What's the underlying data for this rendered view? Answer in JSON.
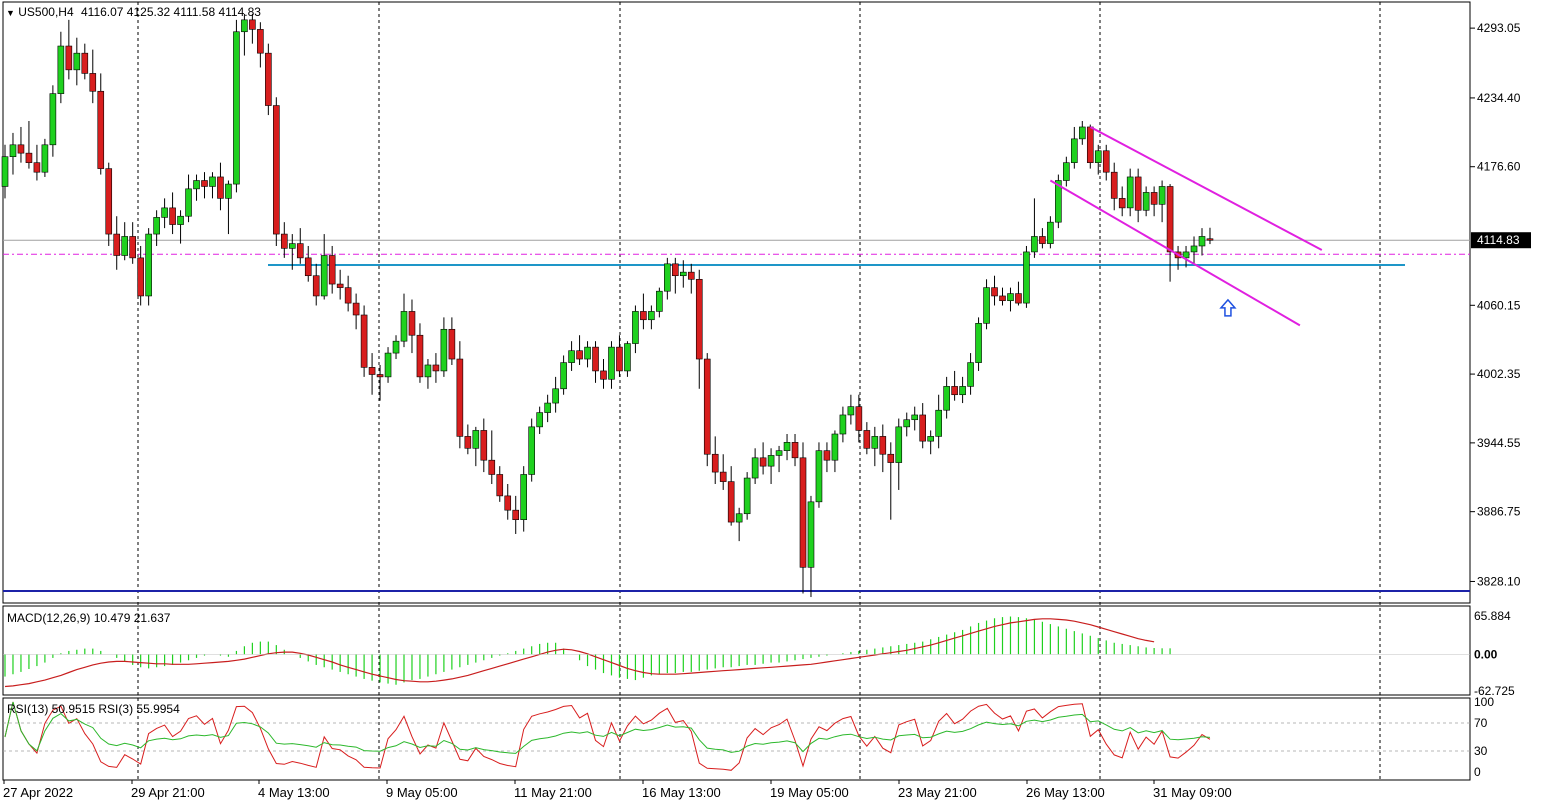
{
  "header": {
    "symbol": "US500,H4",
    "ohlc": "4116.07 4125.32 4111.58 4114.83",
    "arrow": "down-triangle-icon"
  },
  "price_axis": {
    "ticks": [
      "4293.05",
      "4234.40",
      "4176.60",
      "4060.15",
      "4002.35",
      "3944.55",
      "3886.75",
      "3828.10"
    ],
    "current": "4114.83"
  },
  "macd": {
    "label": "MACD(12,26,9) 10.479 21.637",
    "ticks": [
      "65.884",
      "0.00",
      "-62.725"
    ]
  },
  "rsi": {
    "label": "RSI(13) 50.9515  RSI(3) 55.9954",
    "ticks": [
      "100",
      "70",
      "30",
      "0"
    ]
  },
  "time_axis": {
    "labels": [
      "27 Apr 2022",
      "29 Apr 21:00",
      "4 May 13:00",
      "9 May 05:00",
      "11 May 21:00",
      "16 May 13:00",
      "19 May 05:00",
      "23 May 21:00",
      "26 May 13:00",
      "31 May 09:00"
    ]
  },
  "colors": {
    "bull": "#1fd11f",
    "bear": "#d81e1e",
    "channel": "#e020e0",
    "support": "#1e96c8",
    "bottom_line": "#1c22a8",
    "macd_signal": "#c81e1e",
    "rsi13": "#2cb82c",
    "rsi3": "#d81e1e"
  },
  "chart_data": {
    "type": "candlestick",
    "symbol": "US500",
    "timeframe": "H4",
    "last_bar": {
      "open": 4116.07,
      "high": 4125.32,
      "low": 4111.58,
      "close": 4114.83
    },
    "ohlc": [
      [
        4160,
        4195,
        4150,
        4185
      ],
      [
        4185,
        4205,
        4170,
        4195
      ],
      [
        4195,
        4210,
        4180,
        4188
      ],
      [
        4188,
        4215,
        4175,
        4180
      ],
      [
        4180,
        4195,
        4165,
        4172
      ],
      [
        4172,
        4200,
        4168,
        4195
      ],
      [
        4195,
        4245,
        4185,
        4238
      ],
      [
        4238,
        4290,
        4230,
        4278
      ],
      [
        4278,
        4300,
        4250,
        4258
      ],
      [
        4258,
        4285,
        4245,
        4272
      ],
      [
        4272,
        4280,
        4250,
        4255
      ],
      [
        4255,
        4275,
        4230,
        4240
      ],
      [
        4240,
        4255,
        4170,
        4175
      ],
      [
        4175,
        4180,
        4110,
        4120
      ],
      [
        4120,
        4135,
        4090,
        4102
      ],
      [
        4102,
        4130,
        4098,
        4118
      ],
      [
        4118,
        4130,
        4095,
        4100
      ],
      [
        4100,
        4110,
        4060,
        4068
      ],
      [
        4068,
        4125,
        4060,
        4120
      ],
      [
        4120,
        4140,
        4110,
        4134
      ],
      [
        4134,
        4150,
        4125,
        4142
      ],
      [
        4142,
        4155,
        4120,
        4128
      ],
      [
        4128,
        4140,
        4112,
        4135
      ],
      [
        4135,
        4170,
        4130,
        4158
      ],
      [
        4158,
        4170,
        4148,
        4165
      ],
      [
        4165,
        4172,
        4150,
        4160
      ],
      [
        4160,
        4172,
        4150,
        4168
      ],
      [
        4168,
        4180,
        4140,
        4150
      ],
      [
        4150,
        4165,
        4120,
        4162
      ],
      [
        4162,
        4300,
        4155,
        4290
      ],
      [
        4290,
        4305,
        4270,
        4300
      ],
      [
        4300,
        4305,
        4280,
        4292
      ],
      [
        4292,
        4298,
        4260,
        4272
      ],
      [
        4272,
        4280,
        4220,
        4228
      ],
      [
        4228,
        4235,
        4110,
        4120
      ],
      [
        4120,
        4130,
        4100,
        4108
      ],
      [
        4108,
        4120,
        4090,
        4112
      ],
      [
        4112,
        4125,
        4095,
        4100
      ],
      [
        4100,
        4110,
        4080,
        4085
      ],
      [
        4085,
        4095,
        4060,
        4068
      ],
      [
        4068,
        4120,
        4065,
        4102
      ],
      [
        4102,
        4110,
        4070,
        4078
      ],
      [
        4078,
        4090,
        4065,
        4075
      ],
      [
        4075,
        4085,
        4055,
        4062
      ],
      [
        4062,
        4070,
        4040,
        4052
      ],
      [
        4052,
        4060,
        4000,
        4008
      ],
      [
        4008,
        4020,
        3985,
        4002
      ],
      [
        4002,
        4010,
        3980,
        4000
      ],
      [
        4000,
        4025,
        3995,
        4020
      ],
      [
        4020,
        4035,
        4015,
        4030
      ],
      [
        4030,
        4070,
        4025,
        4055
      ],
      [
        4055,
        4065,
        4020,
        4035
      ],
      [
        4035,
        4045,
        3995,
        4000
      ],
      [
        4000,
        4015,
        3990,
        4010
      ],
      [
        4010,
        4020,
        3995,
        4005
      ],
      [
        4005,
        4050,
        4000,
        4040
      ],
      [
        4040,
        4050,
        4010,
        4015
      ],
      [
        4015,
        4030,
        3940,
        3950
      ],
      [
        3950,
        3960,
        3935,
        3940
      ],
      [
        3940,
        3958,
        3925,
        3955
      ],
      [
        3955,
        3965,
        3920,
        3930
      ],
      [
        3930,
        3955,
        3910,
        3918
      ],
      [
        3918,
        3925,
        3895,
        3900
      ],
      [
        3900,
        3910,
        3880,
        3888
      ],
      [
        3888,
        3900,
        3868,
        3880
      ],
      [
        3880,
        3925,
        3870,
        3918
      ],
      [
        3918,
        3965,
        3912,
        3958
      ],
      [
        3958,
        3975,
        3952,
        3970
      ],
      [
        3970,
        3985,
        3962,
        3978
      ],
      [
        3978,
        4000,
        3970,
        3990
      ],
      [
        3990,
        4018,
        3985,
        4012
      ],
      [
        4012,
        4030,
        4005,
        4022
      ],
      [
        4022,
        4035,
        4010,
        4015
      ],
      [
        4015,
        4030,
        4008,
        4025
      ],
      [
        4025,
        4030,
        3995,
        4005
      ],
      [
        4005,
        4015,
        3990,
        3998
      ],
      [
        3998,
        4030,
        3990,
        4025
      ],
      [
        4025,
        4035,
        4000,
        4005
      ],
      [
        4005,
        4030,
        4000,
        4028
      ],
      [
        4028,
        4060,
        4020,
        4055
      ],
      [
        4055,
        4070,
        4040,
        4048
      ],
      [
        4048,
        4060,
        4040,
        4055
      ],
      [
        4055,
        4075,
        4050,
        4072
      ],
      [
        4072,
        4100,
        4065,
        4095
      ],
      [
        4095,
        4100,
        4070,
        4085
      ],
      [
        4085,
        4098,
        4075,
        4088
      ],
      [
        4088,
        4095,
        4070,
        4082
      ],
      [
        4082,
        4090,
        3990,
        4015
      ],
      [
        4015,
        4020,
        3925,
        3935
      ],
      [
        3935,
        3950,
        3910,
        3920
      ],
      [
        3920,
        3935,
        3905,
        3912
      ],
      [
        3912,
        3925,
        3875,
        3878
      ],
      [
        3878,
        3890,
        3862,
        3885
      ],
      [
        3885,
        3920,
        3880,
        3915
      ],
      [
        3915,
        3940,
        3910,
        3932
      ],
      [
        3932,
        3945,
        3918,
        3925
      ],
      [
        3925,
        3940,
        3910,
        3934
      ],
      [
        3934,
        3942,
        3920,
        3938
      ],
      [
        3938,
        3952,
        3930,
        3945
      ],
      [
        3945,
        3952,
        3925,
        3932
      ],
      [
        3932,
        3945,
        3818,
        3840
      ],
      [
        3840,
        3900,
        3815,
        3895
      ],
      [
        3895,
        3945,
        3890,
        3938
      ],
      [
        3938,
        3945,
        3920,
        3930
      ],
      [
        3930,
        3955,
        3920,
        3952
      ],
      [
        3952,
        3975,
        3945,
        3968
      ],
      [
        3968,
        3985,
        3960,
        3975
      ],
      [
        3975,
        3985,
        3945,
        3955
      ],
      [
        3955,
        3962,
        3935,
        3940
      ],
      [
        3940,
        3958,
        3925,
        3950
      ],
      [
        3950,
        3960,
        3920,
        3935
      ],
      [
        3935,
        3945,
        3880,
        3928
      ],
      [
        3928,
        3965,
        3905,
        3958
      ],
      [
        3958,
        3970,
        3950,
        3964
      ],
      [
        3964,
        3975,
        3955,
        3968
      ],
      [
        3968,
        3978,
        3940,
        3946
      ],
      [
        3946,
        3955,
        3935,
        3950
      ],
      [
        3950,
        3985,
        3940,
        3972
      ],
      [
        3972,
        4000,
        3965,
        3992
      ],
      [
        3992,
        4005,
        3980,
        3985
      ],
      [
        3985,
        4000,
        3978,
        3992
      ],
      [
        3992,
        4020,
        3985,
        4012
      ],
      [
        4012,
        4050,
        4005,
        4045
      ],
      [
        4045,
        4082,
        4040,
        4075
      ],
      [
        4075,
        4085,
        4060,
        4068
      ],
      [
        4068,
        4075,
        4060,
        4064
      ],
      [
        4064,
        4075,
        4055,
        4070
      ],
      [
        4070,
        4080,
        4060,
        4062
      ],
      [
        4062,
        4110,
        4058,
        4105
      ],
      [
        4105,
        4150,
        4100,
        4118
      ],
      [
        4118,
        4125,
        4108,
        4112
      ],
      [
        4112,
        4135,
        4108,
        4130
      ],
      [
        4130,
        4170,
        4125,
        4165
      ],
      [
        4165,
        4185,
        4160,
        4180
      ],
      [
        4180,
        4210,
        4175,
        4200
      ],
      [
        4200,
        4215,
        4195,
        4210
      ],
      [
        4210,
        4212,
        4175,
        4180
      ],
      [
        4180,
        4195,
        4170,
        4190
      ],
      [
        4190,
        4195,
        4165,
        4172
      ],
      [
        4172,
        4180,
        4140,
        4150
      ],
      [
        4150,
        4160,
        4135,
        4142
      ],
      [
        4142,
        4175,
        4135,
        4168
      ],
      [
        4168,
        4175,
        4130,
        4140
      ],
      [
        4140,
        4160,
        4135,
        4155
      ],
      [
        4155,
        4160,
        4135,
        4145
      ],
      [
        4145,
        4165,
        4130,
        4160
      ],
      [
        4160,
        4162,
        4080,
        4105
      ],
      [
        4105,
        4110,
        4090,
        4100
      ],
      [
        4100,
        4110,
        4092,
        4105
      ],
      [
        4105,
        4118,
        4095,
        4110
      ],
      [
        4110,
        4125,
        4102,
        4118
      ],
      [
        4116.07,
        4125.32,
        4111.58,
        4114.83
      ]
    ],
    "yrange": [
      3810,
      4315
    ],
    "price_ticks": [
      4293.05,
      4234.4,
      4176.6,
      4060.15,
      4002.35,
      3944.55,
      3886.75,
      3828.1
    ],
    "current_price": 4114.83,
    "support_level": 4094,
    "bottom_level": 3810,
    "dashed_level": 4103,
    "channel_upper": [
      [
        136,
        4210
      ],
      [
        160,
        4115
      ]
    ],
    "channel_lower": [
      [
        131,
        4165
      ],
      [
        155,
        4050
      ]
    ],
    "arrow_bar": 153,
    "arrow_price": 4058,
    "macd": {
      "params": "12,26,9",
      "value": 10.479,
      "signal_value": 21.637,
      "range": [
        -62.725,
        65.884
      ],
      "histogram": [
        -38,
        -34,
        -30,
        -25,
        -20,
        -14,
        -6,
        2,
        6,
        8,
        10,
        10,
        6,
        0,
        -6,
        -12,
        -18,
        -22,
        -24,
        -22,
        -20,
        -18,
        -14,
        -10,
        -6,
        -2,
        0,
        -2,
        -4,
        6,
        14,
        20,
        22,
        22,
        16,
        8,
        0,
        -6,
        -12,
        -18,
        -22,
        -26,
        -30,
        -34,
        -38,
        -42,
        -45,
        -48,
        -50,
        -52,
        -48,
        -44,
        -42,
        -38,
        -34,
        -30,
        -26,
        -22,
        -18,
        -14,
        -10,
        -6,
        -2,
        2,
        6,
        10,
        14,
        18,
        20,
        20,
        10,
        0,
        -10,
        -20,
        -26,
        -32,
        -36,
        -40,
        -42,
        -44,
        -40,
        -36,
        -34,
        -32,
        -32,
        -30,
        -30,
        -28,
        -26,
        -24,
        -22,
        -22,
        -20,
        -18,
        -18,
        -16,
        -14,
        -14,
        -12,
        -10,
        -8,
        -6,
        -4,
        -2,
        0,
        2,
        4,
        6,
        8,
        10,
        12,
        14,
        16,
        18,
        20,
        22,
        26,
        30,
        34,
        38,
        42,
        48,
        54,
        58,
        62,
        64,
        65,
        64,
        62,
        60,
        56,
        52,
        48,
        44,
        40,
        36,
        32,
        28,
        24,
        20,
        18,
        16,
        14,
        12,
        11,
        10.5,
        10.479
      ],
      "signal": [
        -55,
        -54,
        -52,
        -50,
        -47,
        -44,
        -40,
        -36,
        -31,
        -26,
        -22,
        -18,
        -15,
        -13,
        -12,
        -12,
        -13,
        -14,
        -15,
        -16,
        -16,
        -17,
        -17,
        -17,
        -16,
        -15,
        -14,
        -13,
        -12,
        -10,
        -8,
        -5,
        -2,
        1,
        3,
        4,
        4,
        2,
        -1,
        -5,
        -9,
        -13,
        -18,
        -22,
        -26,
        -30,
        -34,
        -37,
        -40,
        -43,
        -45,
        -46,
        -47,
        -47,
        -46,
        -44,
        -42,
        -39,
        -36,
        -32,
        -28,
        -24,
        -20,
        -16,
        -12,
        -8,
        -4,
        0,
        4,
        7,
        9,
        8,
        5,
        1,
        -4,
        -9,
        -14,
        -19,
        -24,
        -28,
        -31,
        -33,
        -34,
        -34,
        -34,
        -33,
        -32,
        -31,
        -30,
        -29,
        -28,
        -27,
        -26,
        -25,
        -24,
        -23,
        -22,
        -21,
        -20,
        -19,
        -18,
        -17,
        -15,
        -13,
        -11,
        -9,
        -7,
        -5,
        -3,
        -1,
        1,
        3,
        5,
        7,
        10,
        13,
        16,
        20,
        24,
        28,
        32,
        36,
        40,
        44,
        48,
        51,
        54,
        56,
        58,
        60,
        61,
        61,
        60,
        59,
        57,
        54,
        51,
        47,
        43,
        39,
        35,
        31,
        27,
        24,
        21.637
      ]
    },
    "rsi": {
      "rsi13_label": "RSI(13) 50.9515",
      "rsi3_label": "RSI(3) 55.9954",
      "levels": [
        30,
        70
      ],
      "range": [
        0,
        100
      ]
    }
  }
}
